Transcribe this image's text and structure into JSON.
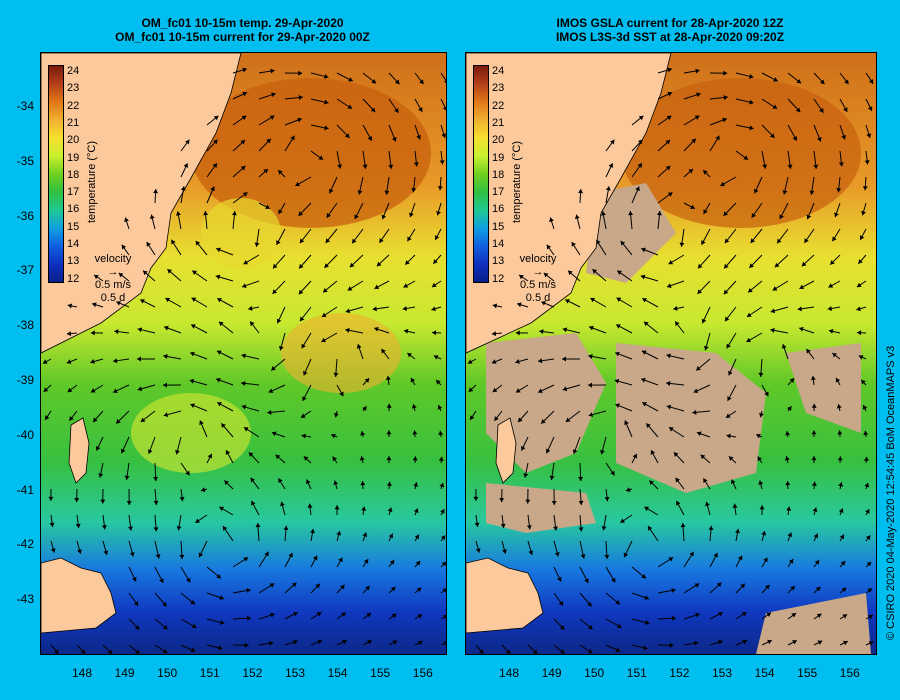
{
  "left_panel": {
    "title_line1": "OM_fc01 10-15m temp. 29-Apr-2020",
    "title_line2": "OM_fc01 10-15m current for 29-Apr-2020 00Z"
  },
  "right_panel": {
    "title_line1": "IMOS GSLA current for 28-Apr-2020 12Z",
    "title_line2": "IMOS L3S-3d SST at 28-Apr-2020 09:20Z"
  },
  "colorbar": {
    "label": "temperature (°C)",
    "ticks": [
      "24",
      "23",
      "22",
      "21",
      "20",
      "19",
      "18",
      "17",
      "16",
      "15",
      "14",
      "13",
      "12"
    ],
    "colors": [
      "#7a1a0a",
      "#b4401a",
      "#e07818",
      "#f0b030",
      "#f6e030",
      "#c8f030",
      "#70d020",
      "#30c040",
      "#20c890",
      "#10a0e0",
      "#1060e0",
      "#1030c0",
      "#082088"
    ]
  },
  "velocity_legend": {
    "title": "velocity",
    "speed": "0.5 m/s",
    "duration": "0.5 d"
  },
  "y_axis_ticks": [
    "-34",
    "-35",
    "-36",
    "-37",
    "-38",
    "-39",
    "-40",
    "-41",
    "-42",
    "-43"
  ],
  "x_axis_ticks": [
    "148",
    "149",
    "150",
    "151",
    "152",
    "153",
    "154",
    "155",
    "156"
  ],
  "credit": "© CSIRO 2020   04-May-2020 12:54:45 BoM OceanMAPS v3",
  "colors": {
    "background": "#00bff0",
    "land": "#fcc99c",
    "no_data": "#c8a888"
  }
}
